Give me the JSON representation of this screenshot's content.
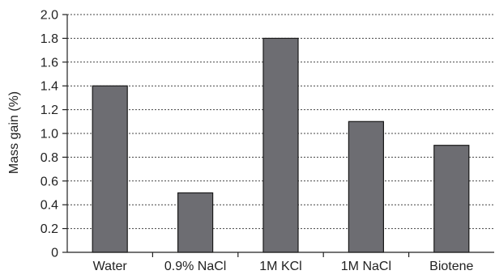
{
  "chart_data": {
    "type": "bar",
    "title": "",
    "xlabel": "",
    "ylabel": "Mass gain (%)",
    "categories": [
      "Water",
      "0.9% NaCl",
      "1M KCl",
      "1M NaCl",
      "Biotene"
    ],
    "values": [
      1.4,
      0.5,
      1.8,
      1.1,
      0.9
    ],
    "ylim": [
      0,
      2.0
    ],
    "yticks": [
      0,
      0.2,
      0.4,
      0.6,
      0.8,
      1.0,
      1.2,
      1.4,
      1.6,
      1.8,
      2.0
    ],
    "ytick_labels": [
      "0",
      "0.2",
      "0.4",
      "0.6",
      "0.8",
      "1.0",
      "1.2",
      "1.4",
      "1.6",
      "1.8",
      "2.0"
    ],
    "grid": "horizontal dashed",
    "bar_color": "#6d6d72",
    "bar_edge_color": "#1a1a1a"
  }
}
